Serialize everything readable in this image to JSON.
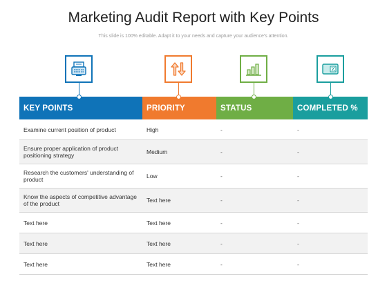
{
  "title": "Marketing Audit Report with Key Points",
  "subtitle": "This slide is 100% editable. Adapt it to your needs and capture your audience's attention.",
  "colors": {
    "blue": "#0f73b8",
    "orange": "#f07a2e",
    "green": "#6fae45",
    "teal": "#1a9e9e"
  },
  "icons": [
    "typewriter-icon",
    "sort-arrows-icon",
    "bar-chart-icon",
    "percent-card-icon"
  ],
  "headers": [
    "KEY POINTS",
    "PRIORITY",
    "STATUS",
    "COMPLETED %"
  ],
  "rows": [
    [
      "Examine current position of product",
      "High",
      "-",
      "-"
    ],
    [
      "Ensure proper application  of product positioning strategy",
      "Medium",
      "-",
      "-"
    ],
    [
      "Research the customers' understanding of product",
      "Low",
      "-",
      "-"
    ],
    [
      "Know the aspects of competitive advantage of the product",
      "Text here",
      "-",
      "-"
    ],
    [
      "Text here",
      "Text here",
      "-",
      "-"
    ],
    [
      "Text here",
      "Text here",
      "-",
      "-"
    ],
    [
      "Text here",
      "Text here",
      "-",
      "-"
    ]
  ]
}
